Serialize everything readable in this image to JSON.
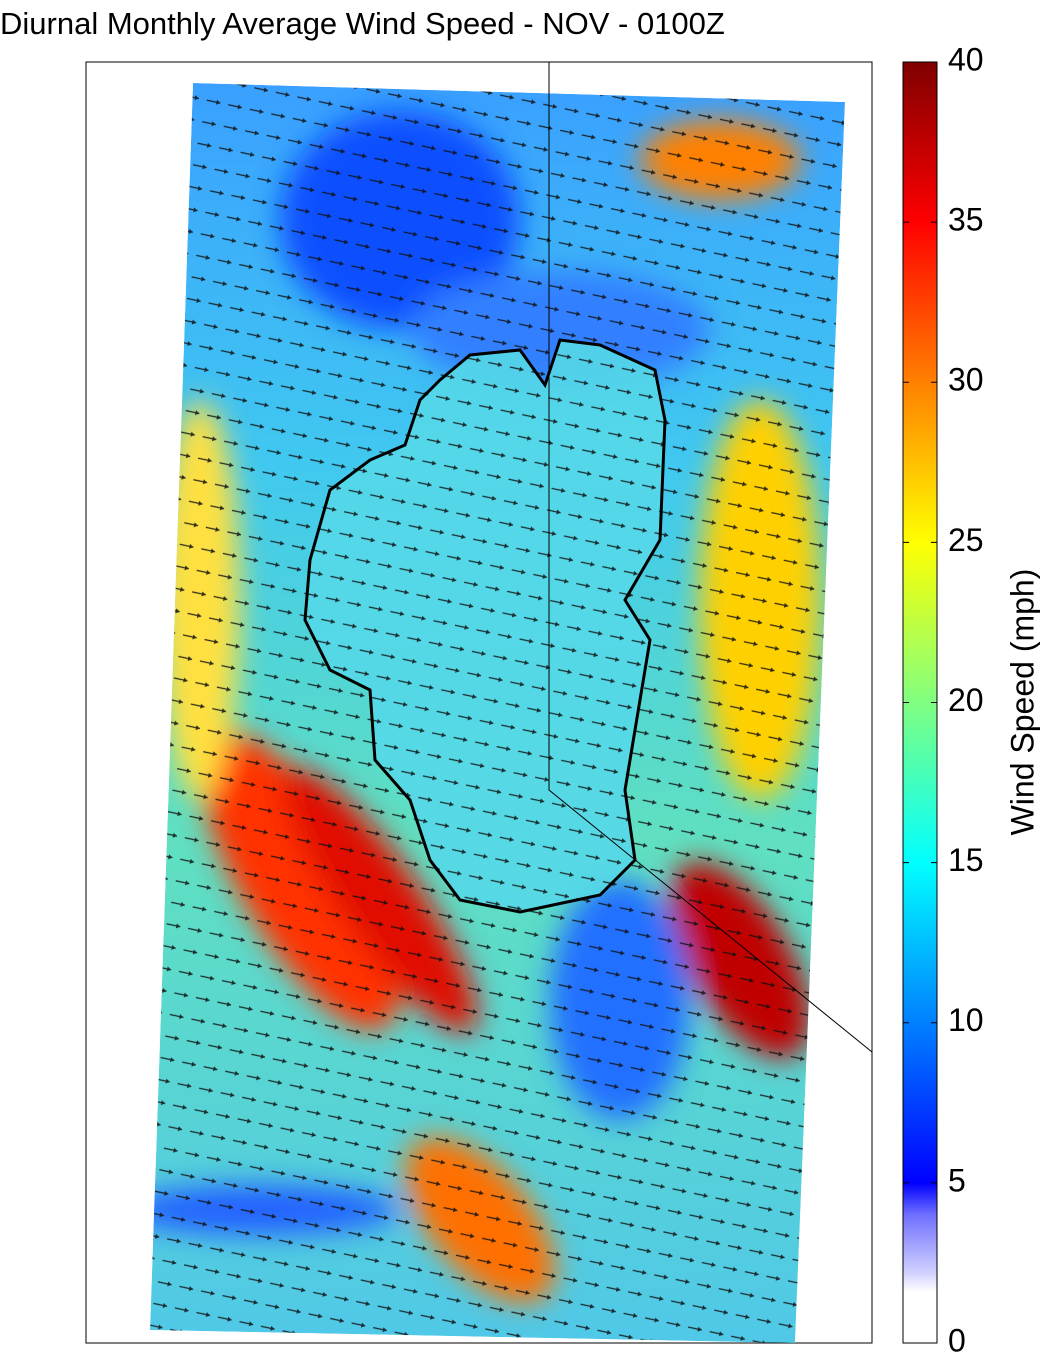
{
  "title": "Diurnal Monthly Average Wind Speed - NOV - 0100Z",
  "colorbar": {
    "label": "Wind Speed (mph)",
    "lim": [
      0,
      40
    ],
    "ticks": [
      0,
      5,
      10,
      15,
      20,
      25,
      30,
      35,
      40
    ],
    "color_stops": [
      {
        "value": 0,
        "color": "#ffffff"
      },
      {
        "value": 1.6,
        "color": "#ffffff"
      },
      {
        "value": 2.2,
        "color": "#d0d0ff"
      },
      {
        "value": 4,
        "color": "#7070ff"
      },
      {
        "value": 5,
        "color": "#0000ff"
      },
      {
        "value": 10,
        "color": "#0080ff"
      },
      {
        "value": 15,
        "color": "#00ffff"
      },
      {
        "value": 20,
        "color": "#80ff80"
      },
      {
        "value": 25,
        "color": "#ffff00"
      },
      {
        "value": 30,
        "color": "#ff8000"
      },
      {
        "value": 35,
        "color": "#ff0000"
      },
      {
        "value": 40,
        "color": "#800000"
      }
    ]
  }
}
